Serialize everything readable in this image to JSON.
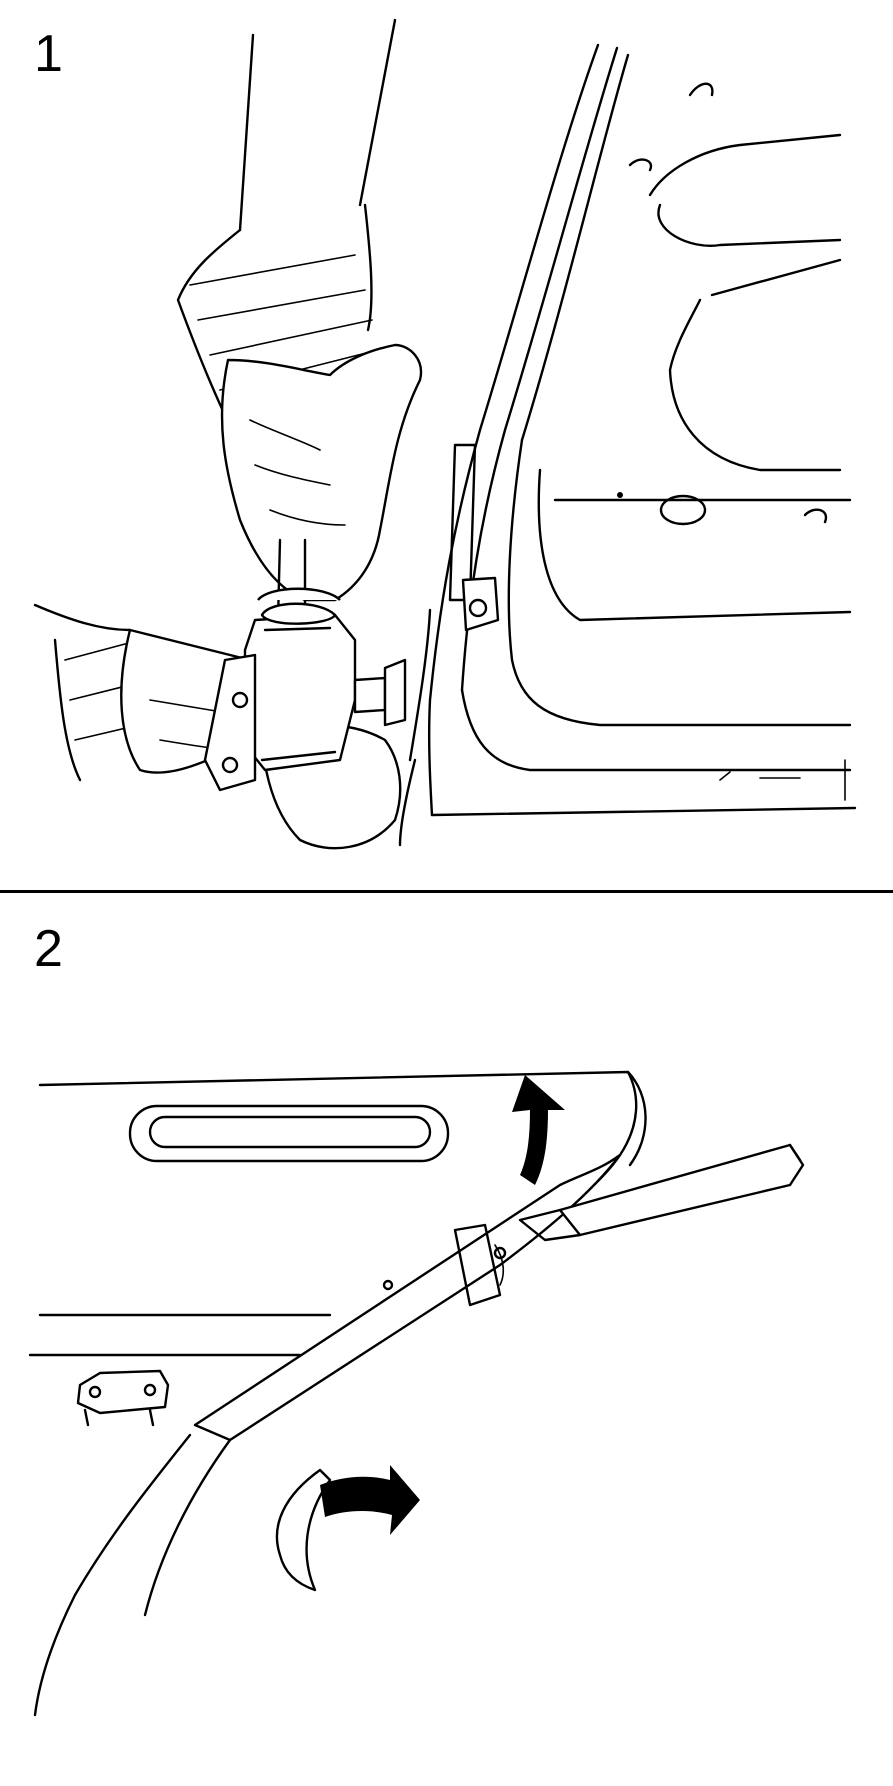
{
  "figure": {
    "panels": [
      {
        "step": "1"
      },
      {
        "step": "2"
      }
    ]
  }
}
